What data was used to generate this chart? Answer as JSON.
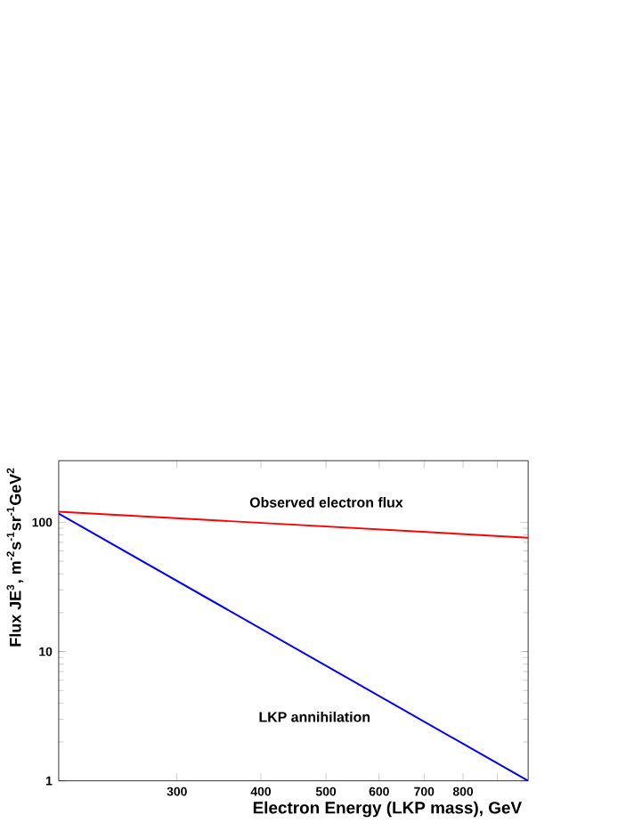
{
  "chart_data": {
    "type": "line",
    "xlabel": "Electron Energy (LKP mass), GeV",
    "ylabel": "Flux JE$^{3}$, m$^{-2}$s$^{-1}$sr$^{-1}$GeV$^{2}$",
    "log": "xy",
    "x": [
      200,
      1000
    ],
    "xlim": [
      200,
      1000
    ],
    "ylim": [
      1,
      300
    ],
    "xticks": [
      300,
      400,
      500,
      600,
      700,
      800,
      {
        "value": 900,
        "label": null
      }
    ],
    "yticks": [
      1,
      10,
      100
    ],
    "series": [
      {
        "name": "Observed electron flux",
        "color": "#ff0000",
        "values": [
          121,
          76
        ]
      },
      {
        "name": "LKP annihilation",
        "color": "#0000ff",
        "values": [
          117,
          1
        ]
      }
    ],
    "grid": false,
    "legend": false,
    "marker": "none",
    "line_style": "solid"
  }
}
